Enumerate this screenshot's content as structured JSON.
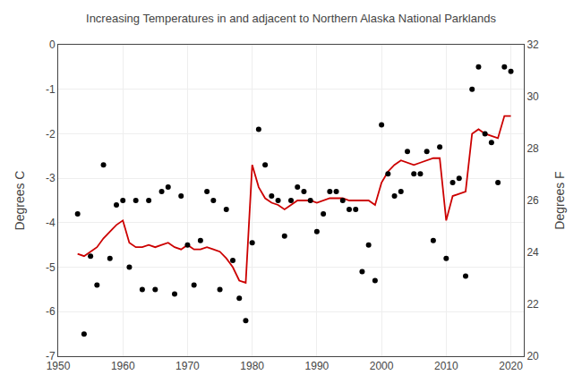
{
  "chart_data": {
    "type": "scatter",
    "title": "Increasing Temperatures in and adjacent to Northern Alaska National Parklands",
    "ylabel": "Degrees C",
    "y2label": "Degrees F",
    "x": [
      1953,
      1954,
      1955,
      1956,
      1957,
      1958,
      1959,
      1960,
      1961,
      1962,
      1963,
      1964,
      1965,
      1966,
      1967,
      1968,
      1969,
      1970,
      1971,
      1972,
      1973,
      1974,
      1975,
      1976,
      1977,
      1978,
      1979,
      1980,
      1981,
      1982,
      1983,
      1984,
      1985,
      1986,
      1987,
      1988,
      1989,
      1990,
      1991,
      1992,
      1993,
      1994,
      1995,
      1996,
      1997,
      1998,
      1999,
      2000,
      2001,
      2002,
      2003,
      2004,
      2005,
      2006,
      2007,
      2008,
      2009,
      2010,
      2011,
      2012,
      2013,
      2014,
      2015,
      2016,
      2017,
      2018,
      2019,
      2020
    ],
    "series": [
      {
        "type": "scatter",
        "color": "#000000",
        "values": [
          -3.8,
          -6.5,
          -4.75,
          -5.4,
          -2.7,
          -4.8,
          -3.6,
          -3.5,
          -5.0,
          -3.5,
          -5.5,
          -3.5,
          -5.5,
          -3.3,
          -3.2,
          -5.6,
          -3.4,
          -4.5,
          -5.4,
          -4.4,
          -3.3,
          -3.5,
          -5.5,
          -3.7,
          -4.85,
          -5.7,
          -6.2,
          -4.45,
          -1.9,
          -2.7,
          -3.4,
          -3.5,
          -4.3,
          -3.5,
          -3.2,
          -3.3,
          -3.5,
          -4.2,
          -3.8,
          -3.3,
          -3.3,
          -3.5,
          -3.7,
          -3.7,
          -5.1,
          -4.5,
          -5.3,
          -1.8,
          -2.9,
          -3.4,
          -3.3,
          -2.4,
          -2.9,
          -2.9,
          -2.4,
          -4.4,
          -2.3,
          -4.8,
          -3.1,
          -3.0,
          -5.2,
          -1.0,
          -0.5,
          -2.0,
          -2.2,
          -3.1,
          -0.5,
          -0.6
        ]
      },
      {
        "type": "line",
        "color": "#cc0000",
        "values": [
          -4.7,
          -4.75,
          -4.65,
          -4.55,
          -4.35,
          -4.2,
          -4.05,
          -3.95,
          -4.45,
          -4.55,
          -4.55,
          -4.5,
          -4.55,
          -4.5,
          -4.45,
          -4.55,
          -4.6,
          -4.5,
          -4.6,
          -4.6,
          -4.55,
          -4.6,
          -4.65,
          -4.8,
          -5.0,
          -5.3,
          -5.35,
          -2.7,
          -3.2,
          -3.45,
          -3.55,
          -3.6,
          -3.7,
          -3.6,
          -3.5,
          -3.5,
          -3.5,
          -3.55,
          -3.5,
          -3.45,
          -3.45,
          -3.45,
          -3.5,
          -3.5,
          -3.5,
          -3.5,
          -3.6,
          -3.1,
          -2.85,
          -2.7,
          -2.6,
          -2.65,
          -2.7,
          -2.65,
          -2.6,
          -2.55,
          -2.55,
          -3.95,
          -3.4,
          -3.35,
          -3.3,
          -2.0,
          -1.9,
          -2.0,
          -2.05,
          -2.1,
          -1.6,
          -1.6
        ]
      }
    ],
    "xlim": [
      1950,
      2022
    ],
    "xticks": [
      1950,
      1960,
      1970,
      1980,
      1990,
      2000,
      2010,
      2020
    ],
    "ylim": [
      -7,
      0
    ],
    "yticks": [
      -7,
      -6,
      -5,
      -4,
      -3,
      -2,
      -1,
      0
    ],
    "y2lim": [
      20,
      32
    ],
    "y2ticks": [
      20,
      22,
      24,
      26,
      28,
      30,
      32
    ],
    "grid": true
  }
}
